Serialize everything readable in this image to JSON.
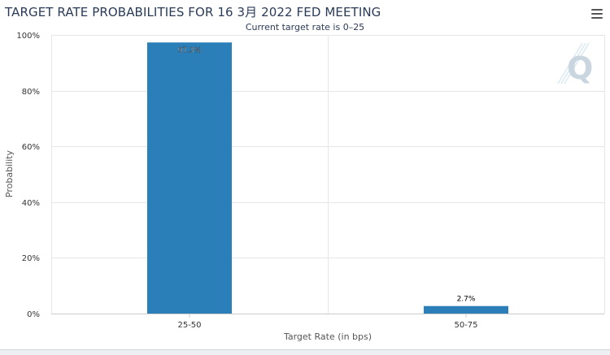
{
  "header": {
    "title": "TARGET RATE PROBABILITIES FOR 16 3月 2022 FED MEETING",
    "subtitle": "Current target rate is 0–25",
    "menu_icon": "hamburger-icon"
  },
  "watermark": {
    "text": "Q",
    "icon": "cme-quikstrike-logo"
  },
  "colors": {
    "bar": "#2b7fb8",
    "grid": "#e6e6e6",
    "axis": "#cccccc",
    "title": "#2a3b57"
  },
  "chart_data": {
    "type": "bar",
    "title": "TARGET RATE PROBABILITIES FOR 16 3月 2022 FED MEETING",
    "subtitle": "Current target rate is 0–25",
    "categories": [
      "25-50",
      "50-75"
    ],
    "values": [
      97.3,
      2.7
    ],
    "data_labels": [
      "97.3%",
      "2.7%"
    ],
    "xlabel": "Target Rate (in bps)",
    "ylabel": "Probability",
    "ylim": [
      0,
      100
    ],
    "yticks": [
      0,
      20,
      40,
      60,
      80,
      100
    ],
    "ytick_labels": [
      "0%",
      "20%",
      "40%",
      "60%",
      "80%",
      "100%"
    ],
    "grid": true,
    "legend": "none"
  }
}
